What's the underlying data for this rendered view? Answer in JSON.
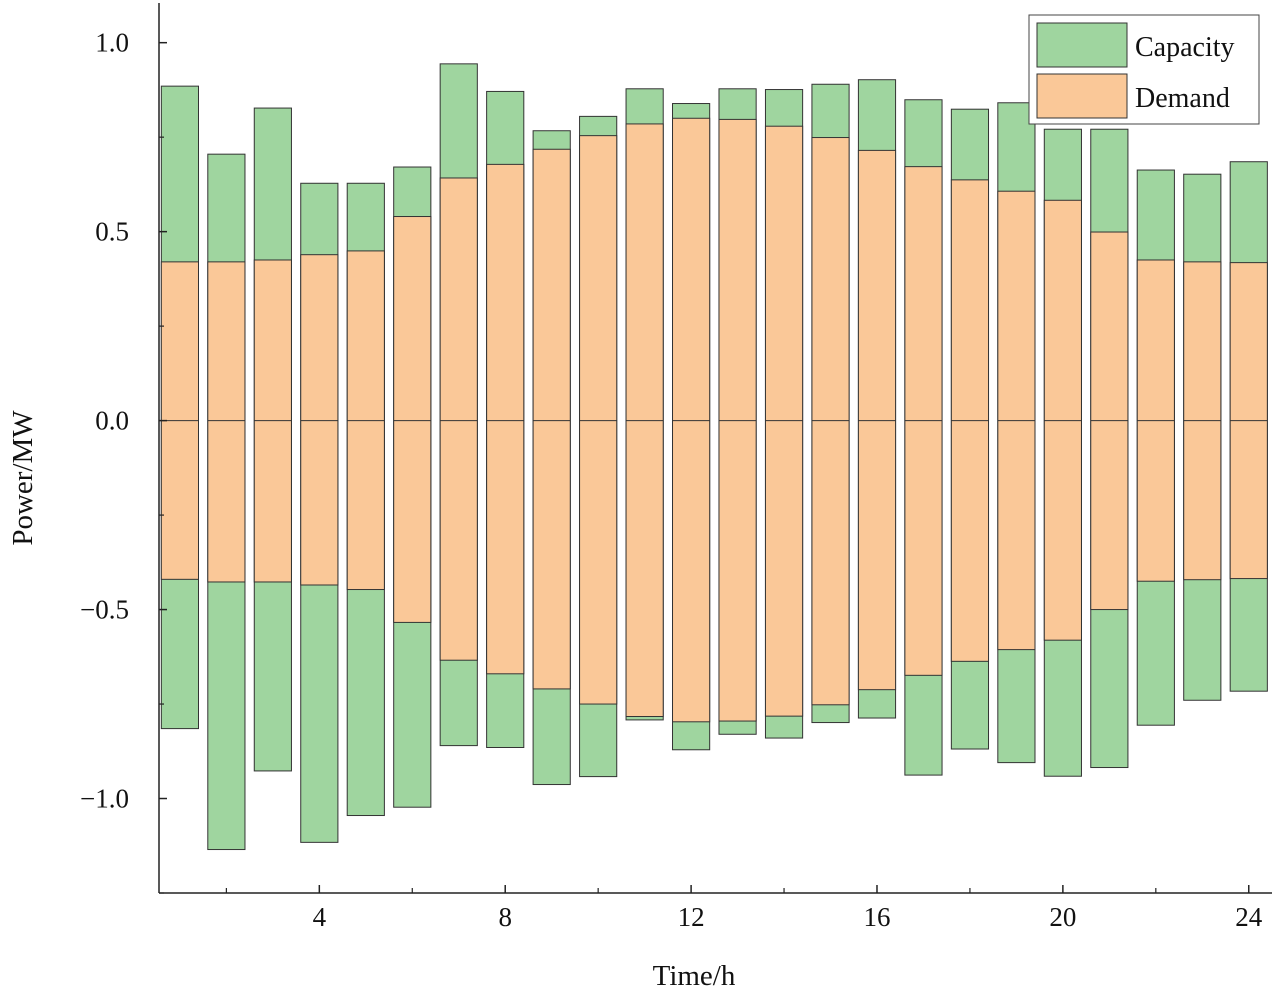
{
  "chart_data": {
    "type": "bar",
    "xlabel": "Time/h",
    "ylabel": "Power/MW",
    "x": [
      1,
      2,
      3,
      4,
      5,
      6,
      7,
      8,
      9,
      10,
      11,
      12,
      13,
      14,
      15,
      16,
      17,
      18,
      19,
      20,
      21,
      22,
      23,
      24
    ],
    "xticks": [
      4,
      8,
      12,
      16,
      20,
      24
    ],
    "xlim": [
      0.55,
      24.5
    ],
    "ylim": [
      -1.25,
      1.105
    ],
    "yticks": [
      -1.0,
      -0.5,
      0.0,
      0.5,
      1.0
    ],
    "ytick_labels": [
      "−1.0",
      "−0.5",
      "0.0",
      "0.5",
      "1.0"
    ],
    "grid": false,
    "legend_position": "top-right",
    "series": [
      {
        "name": "Capacity",
        "color": "#9fd59f",
        "upper": [
          0.885,
          0.705,
          0.827,
          0.628,
          0.628,
          0.671,
          0.944,
          0.871,
          0.767,
          0.805,
          0.878,
          0.839,
          0.878,
          0.876,
          0.89,
          0.902,
          0.849,
          0.824,
          0.841,
          0.771,
          0.771,
          0.663,
          0.652,
          0.685
        ],
        "lower": [
          -0.815,
          -1.135,
          -0.927,
          -1.116,
          -1.045,
          -1.023,
          -0.86,
          -0.865,
          -0.963,
          -0.942,
          -0.792,
          -0.871,
          -0.83,
          -0.84,
          -0.799,
          -0.787,
          -0.938,
          -0.869,
          -0.905,
          -0.941,
          -0.918,
          -0.806,
          -0.74,
          -0.716
        ]
      },
      {
        "name": "Demand",
        "color": "#fac898",
        "upper": [
          0.42,
          0.42,
          0.425,
          0.439,
          0.449,
          0.54,
          0.642,
          0.678,
          0.718,
          0.754,
          0.785,
          0.8,
          0.797,
          0.779,
          0.749,
          0.715,
          0.672,
          0.637,
          0.607,
          0.583,
          0.499,
          0.425,
          0.42,
          0.418
        ],
        "lower": [
          -0.42,
          -0.427,
          -0.427,
          -0.435,
          -0.447,
          -0.534,
          -0.634,
          -0.67,
          -0.71,
          -0.75,
          -0.783,
          -0.797,
          -0.795,
          -0.782,
          -0.752,
          -0.712,
          -0.674,
          -0.637,
          -0.606,
          -0.581,
          -0.5,
          -0.425,
          -0.421,
          -0.418
        ]
      }
    ]
  }
}
